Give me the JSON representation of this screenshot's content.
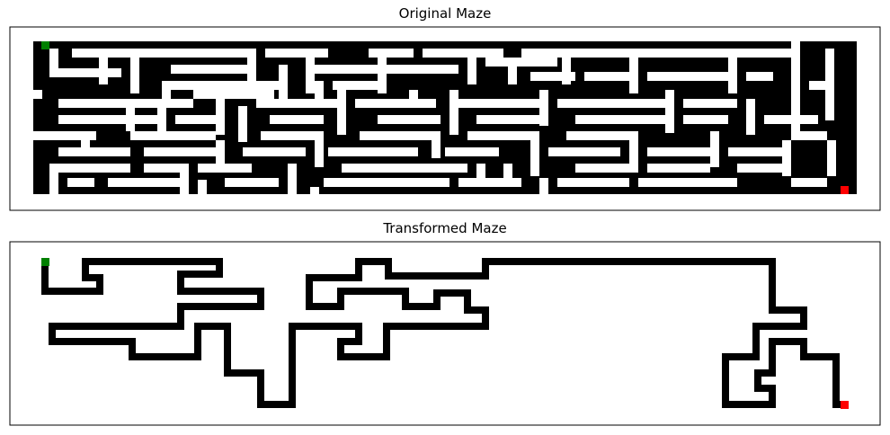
{
  "panels": [
    {
      "title": "Original Maze"
    },
    {
      "title": "Transformed Maze"
    }
  ],
  "colors": {
    "wall": "#000000",
    "background": "#ffffff",
    "start": "#008000",
    "end": "#ff0000"
  },
  "legend_markers": {
    "start": "green square (top-left)",
    "end": "red square (bottom-right)"
  }
}
